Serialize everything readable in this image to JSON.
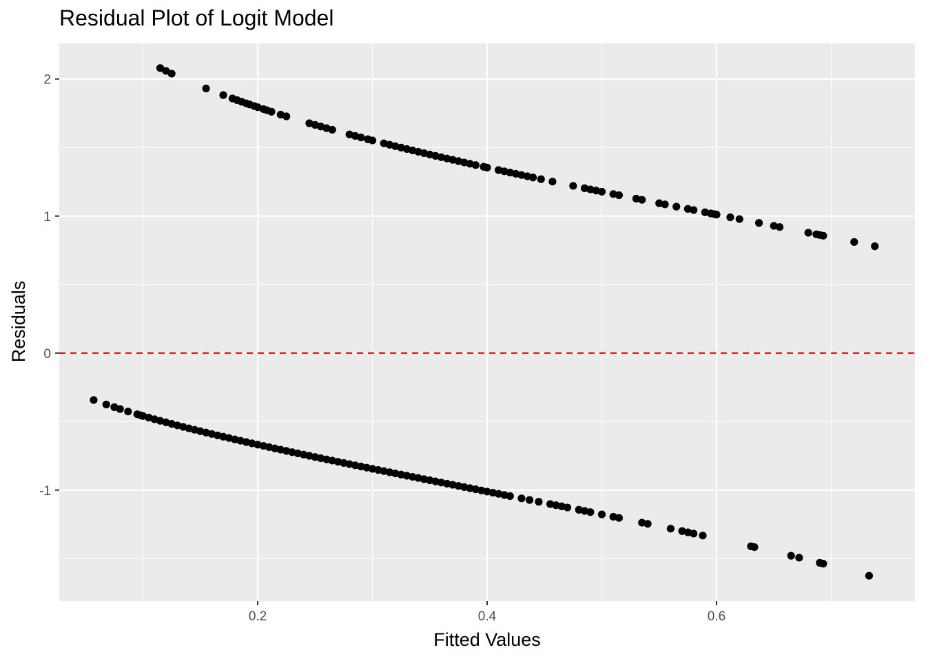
{
  "chart_data": {
    "type": "scatter",
    "title": "Residual Plot of Logit Model",
    "xlabel": "Fitted Values",
    "ylabel": "Residuals",
    "xlim": [
      0.027,
      0.773
    ],
    "ylim": [
      -1.81,
      2.26
    ],
    "x_ticks": [
      0.2,
      0.4,
      0.6
    ],
    "x_tick_labels": [
      "0.2",
      "0.4",
      "0.6"
    ],
    "y_ticks": [
      -1,
      0,
      1,
      2
    ],
    "y_tick_labels": [
      "-1",
      "0",
      "1",
      "2"
    ],
    "grid": true,
    "reference_line": {
      "y": 0,
      "color": "#ff0000",
      "style": "dashed"
    },
    "point_color": "#000000",
    "panel_background": "#ebebeb",
    "groups": [
      {
        "observed": 1,
        "x": [
          0.115,
          0.12,
          0.125,
          0.155,
          0.17,
          0.178,
          0.182,
          0.186,
          0.19,
          0.193,
          0.197,
          0.2,
          0.205,
          0.208,
          0.212,
          0.22,
          0.225,
          0.245,
          0.25,
          0.255,
          0.26,
          0.265,
          0.28,
          0.285,
          0.29,
          0.296,
          0.3,
          0.31,
          0.315,
          0.32,
          0.325,
          0.33,
          0.335,
          0.34,
          0.345,
          0.35,
          0.355,
          0.36,
          0.365,
          0.37,
          0.375,
          0.38,
          0.385,
          0.39,
          0.397,
          0.4,
          0.41,
          0.415,
          0.42,
          0.425,
          0.43,
          0.435,
          0.44,
          0.447,
          0.457,
          0.475,
          0.485,
          0.49,
          0.495,
          0.5,
          0.51,
          0.515,
          0.53,
          0.535,
          0.55,
          0.555,
          0.565,
          0.575,
          0.58,
          0.59,
          0.595,
          0.598,
          0.6,
          0.612,
          0.62,
          0.637,
          0.65,
          0.655,
          0.68,
          0.687,
          0.69,
          0.693,
          0.72,
          0.738
        ]
      },
      {
        "observed": 0,
        "x": [
          0.057,
          0.068,
          0.075,
          0.08,
          0.087,
          0.095,
          0.098,
          0.1,
          0.105,
          0.11,
          0.115,
          0.12,
          0.125,
          0.13,
          0.135,
          0.14,
          0.145,
          0.15,
          0.155,
          0.16,
          0.165,
          0.17,
          0.175,
          0.18,
          0.185,
          0.19,
          0.195,
          0.2,
          0.205,
          0.21,
          0.215,
          0.22,
          0.225,
          0.23,
          0.235,
          0.24,
          0.245,
          0.25,
          0.255,
          0.26,
          0.265,
          0.27,
          0.275,
          0.28,
          0.285,
          0.29,
          0.295,
          0.3,
          0.305,
          0.31,
          0.315,
          0.32,
          0.325,
          0.33,
          0.335,
          0.34,
          0.345,
          0.35,
          0.355,
          0.36,
          0.365,
          0.37,
          0.375,
          0.38,
          0.385,
          0.39,
          0.395,
          0.4,
          0.405,
          0.41,
          0.415,
          0.42,
          0.43,
          0.437,
          0.445,
          0.455,
          0.46,
          0.465,
          0.47,
          0.48,
          0.485,
          0.49,
          0.5,
          0.51,
          0.515,
          0.535,
          0.54,
          0.56,
          0.57,
          0.575,
          0.58,
          0.588,
          0.63,
          0.633,
          0.665,
          0.672,
          0.69,
          0.693,
          0.733
        ]
      }
    ]
  }
}
